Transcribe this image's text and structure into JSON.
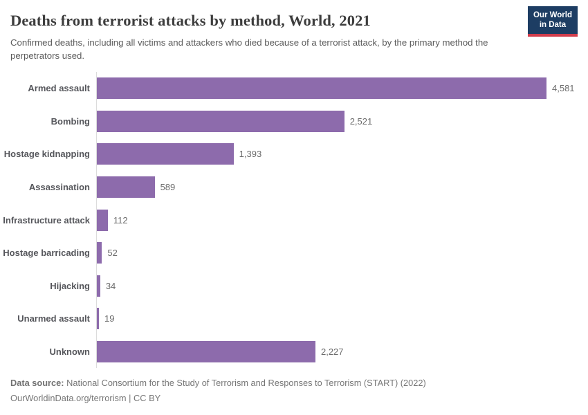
{
  "header": {
    "title": "Deaths from terrorist attacks by method, World, 2021",
    "subtitle": "Confirmed deaths, including all victims and attackers who died because of a terrorist attack, by the primary method the perpetrators used.",
    "logo": {
      "line1": "Our World",
      "line2": "in Data"
    }
  },
  "chart_data": {
    "type": "bar",
    "orientation": "horizontal",
    "title": "Deaths from terrorist attacks by method, World, 2021",
    "xlabel": "",
    "ylabel": "",
    "grid": false,
    "legend": false,
    "x_scale_max": 4581,
    "categories": [
      "Armed assault",
      "Bombing",
      "Hostage kidnapping",
      "Assassination",
      "Infrastructure attack",
      "Hostage barricading",
      "Hijacking",
      "Unarmed assault",
      "Unknown"
    ],
    "values": [
      4581,
      2521,
      1393,
      589,
      112,
      52,
      34,
      19,
      2227
    ],
    "value_labels": [
      "4,581",
      "2,521",
      "1,393",
      "589",
      "112",
      "52",
      "34",
      "19",
      "2,227"
    ]
  },
  "footer": {
    "source_label": "Data source:",
    "source_text": " National Consortium for the Study of Terrorism and Responses to Terrorism (START) (2022)",
    "attribution": "OurWorldinData.org/terrorism | CC BY"
  },
  "colors": {
    "bar": "#8d6bac",
    "logo_background": "#1d3d63",
    "logo_stripe": "#d13d4c",
    "axis_line": "#dcdcdc"
  }
}
